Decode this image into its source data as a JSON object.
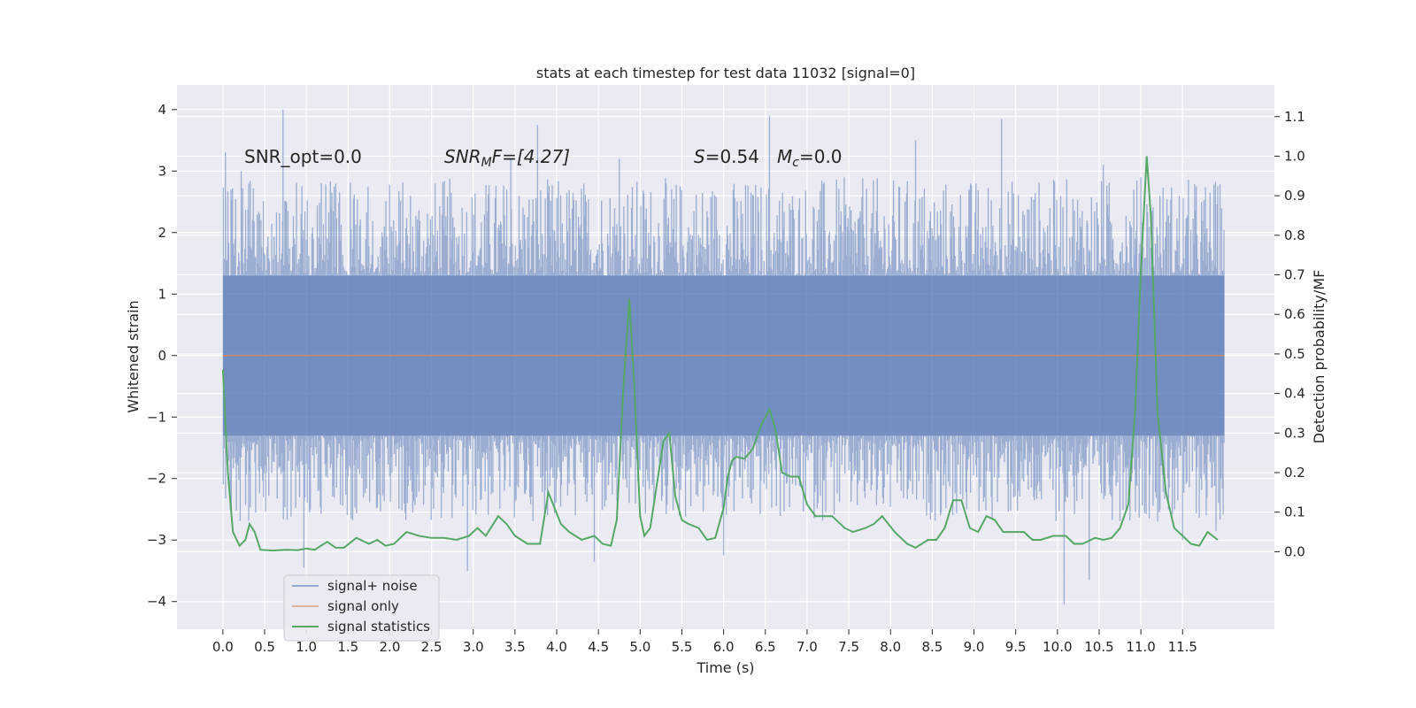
{
  "chart_data": {
    "type": "line",
    "title": "stats at each timestep for test data 11032 [signal=0]",
    "xlabel": "Time (s)",
    "ylabel": "Whitened strain",
    "y2label": "Detection probability/MF",
    "xlim": [
      -0.55,
      12.6
    ],
    "ylim": [
      -4.45,
      4.4
    ],
    "y2lim": [
      -0.196,
      1.18
    ],
    "x_ticks": [
      "0.0",
      "0.5",
      "1.0",
      "1.5",
      "2.0",
      "2.5",
      "3.0",
      "3.5",
      "4.0",
      "4.5",
      "5.0",
      "5.5",
      "6.0",
      "6.5",
      "7.0",
      "7.5",
      "8.0",
      "8.5",
      "9.0",
      "9.5",
      "10.0",
      "10.5",
      "11.0",
      "11.5"
    ],
    "y_ticks": [
      4,
      3,
      2,
      1,
      0,
      -1,
      -2,
      -3,
      -4
    ],
    "y_tick_labels": [
      "4",
      "3",
      "2",
      "1",
      "0",
      "−1",
      "−2",
      "−3",
      "−4"
    ],
    "y2_ticks": [
      0.0,
      0.1,
      0.2,
      0.3,
      0.4,
      0.5,
      0.6,
      0.7,
      0.8,
      0.9,
      1.0,
      1.1
    ],
    "y2_tick_labels": [
      "0.0",
      "0.1",
      "0.2",
      "0.3",
      "0.4",
      "0.5",
      "0.6",
      "0.7",
      "0.8",
      "0.9",
      "1.0",
      "1.1"
    ],
    "grid": true,
    "legend_position": "lower-left",
    "annotations": {
      "snr_opt": "SNR_opt=0.0",
      "snr_mf_main": "SNR",
      "snr_mf_sub": "M",
      "snr_mf_rest": "F=[4.27]",
      "s_main": "S",
      "s_rest": "=0.54",
      "mc_main": "M",
      "mc_sub": "c",
      "mc_rest": "=0.0"
    },
    "series": [
      {
        "name": "signal+ noise",
        "color": "#4c72b0",
        "kind": "noise",
        "x_range": [
          0.0,
          12.0
        ],
        "envelope": [
          1.3,
          -1.3
        ],
        "peaks": [
          {
            "x": 0.03,
            "y": 3.3
          },
          {
            "x": 0.1,
            "y": -2.5
          },
          {
            "x": 0.22,
            "y": 3.0
          },
          {
            "x": 0.72,
            "y": 4.0
          },
          {
            "x": 0.97,
            "y": -3.45
          },
          {
            "x": 1.18,
            "y": 2.8
          },
          {
            "x": 2.93,
            "y": -3.5
          },
          {
            "x": 3.77,
            "y": 3.75
          },
          {
            "x": 3.45,
            "y": 3.2
          },
          {
            "x": 4.45,
            "y": -3.35
          },
          {
            "x": 4.75,
            "y": 3.2
          },
          {
            "x": 6.55,
            "y": 3.9
          },
          {
            "x": 6.0,
            "y": -3.25
          },
          {
            "x": 8.3,
            "y": 3.5
          },
          {
            "x": 9.33,
            "y": 3.85
          },
          {
            "x": 10.08,
            "y": -4.05
          },
          {
            "x": 10.38,
            "y": -3.65
          },
          {
            "x": 10.55,
            "y": 3.1
          },
          {
            "x": 11.5,
            "y": -3.0
          },
          {
            "x": 11.9,
            "y": -2.85
          },
          {
            "x": 11.0,
            "y": 2.9
          }
        ]
      },
      {
        "name": "signal only",
        "color": "#dd8452",
        "x": [
          0.0,
          12.0
        ],
        "y": [
          0.0,
          0.0
        ]
      },
      {
        "name": "signal statistics",
        "color": "#55a868",
        "axis": "right",
        "x": [
          0.0,
          0.06,
          0.12,
          0.2,
          0.27,
          0.32,
          0.38,
          0.45,
          0.6,
          0.75,
          0.9,
          1.0,
          1.1,
          1.25,
          1.35,
          1.45,
          1.6,
          1.75,
          1.85,
          1.95,
          2.05,
          2.2,
          2.35,
          2.5,
          2.65,
          2.8,
          2.95,
          3.05,
          3.15,
          3.3,
          3.4,
          3.5,
          3.65,
          3.8,
          3.9,
          4.05,
          4.15,
          4.3,
          4.45,
          4.55,
          4.65,
          4.72,
          4.8,
          4.87,
          4.93,
          5.0,
          5.05,
          5.12,
          5.2,
          5.28,
          5.35,
          5.42,
          5.5,
          5.58,
          5.7,
          5.8,
          5.9,
          6.0,
          6.05,
          6.1,
          6.15,
          6.25,
          6.35,
          6.45,
          6.55,
          6.62,
          6.7,
          6.8,
          6.9,
          7.0,
          7.1,
          7.2,
          7.3,
          7.45,
          7.55,
          7.7,
          7.8,
          7.9,
          8.05,
          8.2,
          8.3,
          8.45,
          8.55,
          8.65,
          8.75,
          8.85,
          8.95,
          9.05,
          9.15,
          9.25,
          9.35,
          9.5,
          9.6,
          9.7,
          9.8,
          9.95,
          10.1,
          10.2,
          10.3,
          10.45,
          10.55,
          10.65,
          10.75,
          10.85,
          10.93,
          11.0,
          11.07,
          11.12,
          11.2,
          11.3,
          11.4,
          11.5,
          11.6,
          11.7,
          11.8,
          11.92
        ],
        "y": [
          0.46,
          0.2,
          0.05,
          0.015,
          0.03,
          0.07,
          0.05,
          0.005,
          0.003,
          0.005,
          0.004,
          0.008,
          0.005,
          0.025,
          0.01,
          0.01,
          0.035,
          0.02,
          0.03,
          0.015,
          0.02,
          0.05,
          0.04,
          0.035,
          0.035,
          0.03,
          0.04,
          0.06,
          0.04,
          0.09,
          0.07,
          0.04,
          0.02,
          0.02,
          0.15,
          0.07,
          0.05,
          0.03,
          0.04,
          0.02,
          0.015,
          0.08,
          0.42,
          0.64,
          0.42,
          0.09,
          0.04,
          0.06,
          0.17,
          0.28,
          0.3,
          0.14,
          0.08,
          0.07,
          0.06,
          0.03,
          0.035,
          0.11,
          0.19,
          0.23,
          0.24,
          0.235,
          0.26,
          0.32,
          0.36,
          0.31,
          0.2,
          0.19,
          0.19,
          0.12,
          0.09,
          0.09,
          0.09,
          0.06,
          0.05,
          0.06,
          0.07,
          0.09,
          0.05,
          0.02,
          0.01,
          0.03,
          0.03,
          0.06,
          0.13,
          0.13,
          0.06,
          0.05,
          0.09,
          0.08,
          0.05,
          0.05,
          0.05,
          0.03,
          0.03,
          0.04,
          0.04,
          0.02,
          0.02,
          0.035,
          0.03,
          0.035,
          0.06,
          0.12,
          0.35,
          0.71,
          1.0,
          0.85,
          0.35,
          0.15,
          0.06,
          0.04,
          0.02,
          0.015,
          0.05,
          0.03
        ]
      }
    ]
  }
}
